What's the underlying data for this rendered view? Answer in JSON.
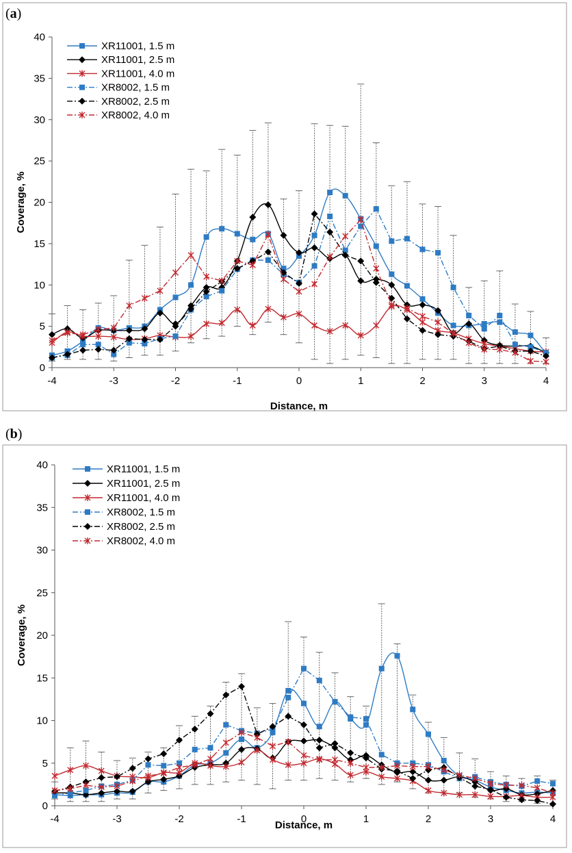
{
  "chart_data": [
    {
      "panel_label": "a",
      "type": "line",
      "xlabel": "Distance, m",
      "ylabel": "Coverage, %",
      "xlim": [
        -4,
        4
      ],
      "ylim": [
        0,
        40
      ],
      "xticks": [
        "-4",
        "-3",
        "-2",
        "-1",
        "0",
        "1",
        "2",
        "3",
        "4"
      ],
      "yticks": [
        "0",
        "5",
        "10",
        "15",
        "20",
        "25",
        "30",
        "35",
        "40"
      ],
      "x": [
        -4,
        -3.75,
        -3.5,
        -3.25,
        -3,
        -2.75,
        -2.5,
        -2.25,
        -2,
        -1.75,
        -1.5,
        -1.25,
        -1,
        -0.75,
        -0.5,
        -0.25,
        0,
        0.25,
        0.5,
        0.75,
        1,
        1.25,
        1.5,
        1.75,
        2,
        2.25,
        2.5,
        2.75,
        3,
        3.25,
        3.5,
        3.75,
        4
      ],
      "series": [
        {
          "name": "XR11001, 1.5 m",
          "color": "#2e7bc4",
          "dash": "solid",
          "marker": "square",
          "values": [
            1.5,
            2.0,
            3.2,
            4.8,
            4.5,
            4.8,
            5.0,
            7.0,
            8.5,
            10.0,
            15.8,
            16.8,
            16.2,
            15.5,
            16.2,
            12.0,
            13.5,
            16.0,
            21.2,
            20.8,
            18.0,
            14.7,
            11.3,
            9.9,
            8.3,
            6.6,
            5.1,
            5.1,
            5.3,
            5.5,
            4.3,
            3.9,
            1.7
          ]
        },
        {
          "name": "XR11001, 2.5 m",
          "color": "#000000",
          "dash": "solid",
          "marker": "diamond",
          "values": [
            4.0,
            4.7,
            3.6,
            4.5,
            4.5,
            4.5,
            4.7,
            6.6,
            5.3,
            7.5,
            9.7,
            9.7,
            12.9,
            18.2,
            19.7,
            16.0,
            13.9,
            14.5,
            13.2,
            13.6,
            10.5,
            10.7,
            10.0,
            7.6,
            7.6,
            6.9,
            4.2,
            5.3,
            3.3,
            2.7,
            2.6,
            2.6,
            1.8
          ]
        },
        {
          "name": "XR11001, 4.0 m",
          "color": "#c0282e",
          "dash": "solid",
          "marker": "star",
          "values": [
            3.0,
            4.3,
            3.8,
            3.8,
            3.7,
            3.4,
            3.5,
            3.9,
            3.7,
            3.8,
            5.3,
            5.4,
            7.0,
            5.1,
            7.1,
            6.1,
            6.5,
            5.1,
            4.4,
            5.1,
            3.9,
            5.1,
            7.4,
            7.0,
            5.5,
            4.5,
            4.2,
            3.5,
            2.9,
            2.6,
            2.3,
            2.0,
            1.9
          ]
        },
        {
          "name": "XR8002, 1.5 m",
          "color": "#2e7bc4",
          "dash": "dashdot",
          "marker": "square",
          "values": [
            1.2,
            1.5,
            2.8,
            2.8,
            1.6,
            3.0,
            2.9,
            3.5,
            3.8,
            7.0,
            8.6,
            9.3,
            11.9,
            13.0,
            13.0,
            11.3,
            10.3,
            12.3,
            18.3,
            14.2,
            17.1,
            19.2,
            15.3,
            15.6,
            14.3,
            13.9,
            9.7,
            6.3,
            4.7,
            6.3,
            2.8,
            2.5,
            1.8
          ]
        },
        {
          "name": "XR8002, 2.5 m",
          "color": "#000000",
          "dash": "dashdot",
          "marker": "diamond",
          "values": [
            1.2,
            1.6,
            2.1,
            2.2,
            2.1,
            3.5,
            3.4,
            3.4,
            5.0,
            7.1,
            9.2,
            10.4,
            12.0,
            12.9,
            14.0,
            11.5,
            10.2,
            18.6,
            16.4,
            13.6,
            12.9,
            10.3,
            8.4,
            5.9,
            4.5,
            4.0,
            3.8,
            3.2,
            2.3,
            2.6,
            2.0,
            2.0,
            1.4
          ]
        },
        {
          "name": "XR8002, 4.0 m",
          "color": "#c0282e",
          "dash": "dashdot",
          "marker": "star",
          "values": [
            3.3,
            4.2,
            4.0,
            4.6,
            4.8,
            7.5,
            8.4,
            9.3,
            11.5,
            13.6,
            11.0,
            10.5,
            12.9,
            12.4,
            16.1,
            10.7,
            9.2,
            10.1,
            13.4,
            15.9,
            17.9,
            12.0,
            7.6,
            7.2,
            6.2,
            5.5,
            4.1,
            3.0,
            2.2,
            2.2,
            1.8,
            0.8,
            0.7
          ]
        }
      ],
      "error_bars": {
        "x": [
          -4,
          -3.75,
          -3.5,
          -3.25,
          -3,
          -2.75,
          -2.5,
          -2.25,
          -2,
          -1.75,
          -1.5,
          -1.25,
          -1,
          -0.75,
          -0.5,
          -0.25,
          0,
          0.25,
          0.5,
          0.75,
          1,
          1.25,
          1.5,
          1.75,
          2,
          2.25,
          2.5,
          2.75,
          3,
          3.25,
          3.5,
          3.75,
          4
        ],
        "low": [
          0.8,
          1.0,
          1.0,
          1.0,
          0.8,
          1.2,
          1.5,
          1.5,
          2.0,
          3.0,
          3.5,
          3.8,
          5.0,
          4.0,
          5.5,
          4.0,
          3.0,
          1.0,
          0.5,
          1.0,
          1.5,
          1.2,
          0.5,
          0.5,
          1.0,
          1.0,
          1.0,
          0.5,
          0.5,
          0.5,
          0.5,
          0.5,
          0.5
        ],
        "high": [
          6.5,
          7.5,
          7.0,
          7.8,
          8.7,
          13.0,
          14.8,
          17.0,
          21.0,
          24.0,
          23.8,
          26.4,
          25.7,
          28.7,
          29.6,
          20.4,
          21.4,
          29.5,
          29.3,
          29.2,
          34.3,
          27.2,
          22.0,
          22.5,
          19.8,
          19.5,
          16.0,
          9.7,
          10.5,
          11.7,
          7.7,
          6.8,
          3.6
        ]
      }
    },
    {
      "panel_label": "b",
      "type": "line",
      "xlabel": "Distance, m",
      "ylabel": "Coverage, %",
      "xlim": [
        -4,
        4
      ],
      "ylim": [
        0,
        40
      ],
      "xticks": [
        "-4",
        "-3",
        "-2",
        "-1",
        "0",
        "1",
        "2",
        "3",
        "4"
      ],
      "yticks": [
        "0",
        "5",
        "10",
        "15",
        "20",
        "25",
        "30",
        "35",
        "40"
      ],
      "x": [
        -4,
        -3.75,
        -3.5,
        -3.25,
        -3,
        -2.75,
        -2.5,
        -2.25,
        -2,
        -1.75,
        -1.5,
        -1.25,
        -1,
        -0.75,
        -0.5,
        -0.25,
        0,
        0.25,
        0.5,
        0.75,
        1,
        1.25,
        1.5,
        1.75,
        2,
        2.25,
        2.5,
        2.75,
        3,
        3.25,
        3.5,
        3.75,
        4
      ],
      "series": [
        {
          "name": "XR11001, 1.5 m",
          "color": "#2e7bc4",
          "dash": "solid",
          "marker": "square",
          "values": [
            1.3,
            1.2,
            1.3,
            1.3,
            1.5,
            1.6,
            2.8,
            2.8,
            3.5,
            4.8,
            5.0,
            6.2,
            7.8,
            6.8,
            8.6,
            13.5,
            12.0,
            9.3,
            12.2,
            10.2,
            9.5,
            16.1,
            17.6,
            11.3,
            8.4,
            5.3,
            3.5,
            3.0,
            2.2,
            1.8,
            1.5,
            1.6,
            1.5
          ]
        },
        {
          "name": "XR11001, 2.5 m",
          "color": "#000000",
          "dash": "solid",
          "marker": "diamond",
          "values": [
            1.5,
            1.5,
            1.3,
            1.5,
            1.7,
            1.7,
            2.8,
            3.1,
            3.5,
            4.5,
            4.8,
            5.0,
            6.6,
            6.7,
            5.6,
            7.5,
            7.6,
            7.7,
            6.8,
            5.4,
            5.9,
            4.8,
            3.9,
            4.0,
            3.0,
            3.0,
            3.4,
            2.8,
            1.8,
            2.0,
            1.3,
            1.4,
            1.8
          ]
        },
        {
          "name": "XR11001, 4.0 m",
          "color": "#c0282e",
          "dash": "solid",
          "marker": "star",
          "values": [
            3.5,
            4.2,
            4.7,
            4.1,
            3.5,
            3.4,
            3.3,
            3.9,
            3.9,
            5.0,
            4.7,
            4.6,
            5.1,
            6.5,
            5.4,
            4.8,
            5.0,
            5.5,
            4.9,
            3.6,
            4.0,
            3.4,
            3.2,
            2.9,
            1.8,
            1.5,
            1.3,
            1.3,
            1.1,
            1.1,
            1.2,
            1.0,
            1.0
          ]
        },
        {
          "name": "XR8002, 1.5 m",
          "color": "#2e7bc4",
          "dash": "dashdot",
          "marker": "square",
          "values": [
            1.2,
            1.5,
            1.8,
            2.3,
            2.5,
            3.0,
            4.8,
            4.7,
            5.0,
            6.6,
            6.8,
            9.5,
            8.8,
            8.5,
            9.0,
            12.7,
            16.1,
            14.7,
            12.2,
            10.4,
            10.2,
            6.0,
            5.0,
            5.0,
            4.8,
            4.0,
            3.2,
            3.4,
            2.8,
            2.5,
            2.3,
            2.9,
            2.6
          ]
        },
        {
          "name": "XR8002, 2.5 m",
          "color": "#000000",
          "dash": "dashdot",
          "marker": "diamond",
          "values": [
            1.7,
            2.2,
            2.8,
            3.3,
            3.4,
            4.4,
            5.5,
            6.1,
            7.7,
            9.0,
            10.8,
            13.0,
            14.0,
            8.4,
            9.3,
            10.5,
            9.5,
            6.8,
            7.3,
            6.2,
            5.6,
            4.3,
            4.1,
            3.2,
            4.2,
            4.5,
            3.3,
            2.3,
            1.9,
            1.0,
            0.7,
            0.6,
            0.2
          ]
        },
        {
          "name": "XR8002, 4.0 m",
          "color": "#c0282e",
          "dash": "dashdot",
          "marker": "star",
          "values": [
            1.8,
            2.0,
            2.4,
            2.2,
            2.3,
            2.9,
            3.5,
            3.8,
            4.5,
            4.8,
            5.5,
            7.4,
            8.6,
            8.0,
            7.0,
            7.5,
            5.9,
            5.4,
            5.4,
            5.0,
            4.5,
            4.5,
            4.7,
            4.6,
            4.6,
            4.2,
            3.6,
            3.2,
            2.6,
            2.4,
            2.4,
            2.1,
            1.5
          ]
        }
      ],
      "error_bars": {
        "x": [
          -4,
          -3.75,
          -3.5,
          -3.25,
          -3,
          -2.75,
          -2.5,
          -2.25,
          -2,
          -1.75,
          -1.5,
          -1.25,
          -1,
          -0.75,
          -0.5,
          -0.25,
          0,
          0.25,
          0.5,
          0.75,
          1,
          1.25,
          1.5,
          1.75,
          2,
          2.25,
          2.5,
          2.75,
          3,
          3.25,
          3.5,
          3.75,
          4
        ],
        "low": [
          0.8,
          0.5,
          0.5,
          0.5,
          0.8,
          0.8,
          1.5,
          1.8,
          2.0,
          2.5,
          2.5,
          2.8,
          3.0,
          2.5,
          2.0,
          3.0,
          3.0,
          3.2,
          3.0,
          2.8,
          3.2,
          2.5,
          2.8,
          2.0,
          1.5,
          1.5,
          1.5,
          1.0,
          0.8,
          0.5,
          0.5,
          0.3,
          0.2
        ],
        "high": [
          2.8,
          6.8,
          7.6,
          6.3,
          5.3,
          5.6,
          6.3,
          6.8,
          9.4,
          10.5,
          11.7,
          14.5,
          15.5,
          11.5,
          12.0,
          21.6,
          19.8,
          18.0,
          15.6,
          12.8,
          11.7,
          23.7,
          19.0,
          13.0,
          9.8,
          8.0,
          6.2,
          5.5,
          4.0,
          3.5,
          3.2,
          3.5,
          3.0
        ]
      }
    }
  ]
}
